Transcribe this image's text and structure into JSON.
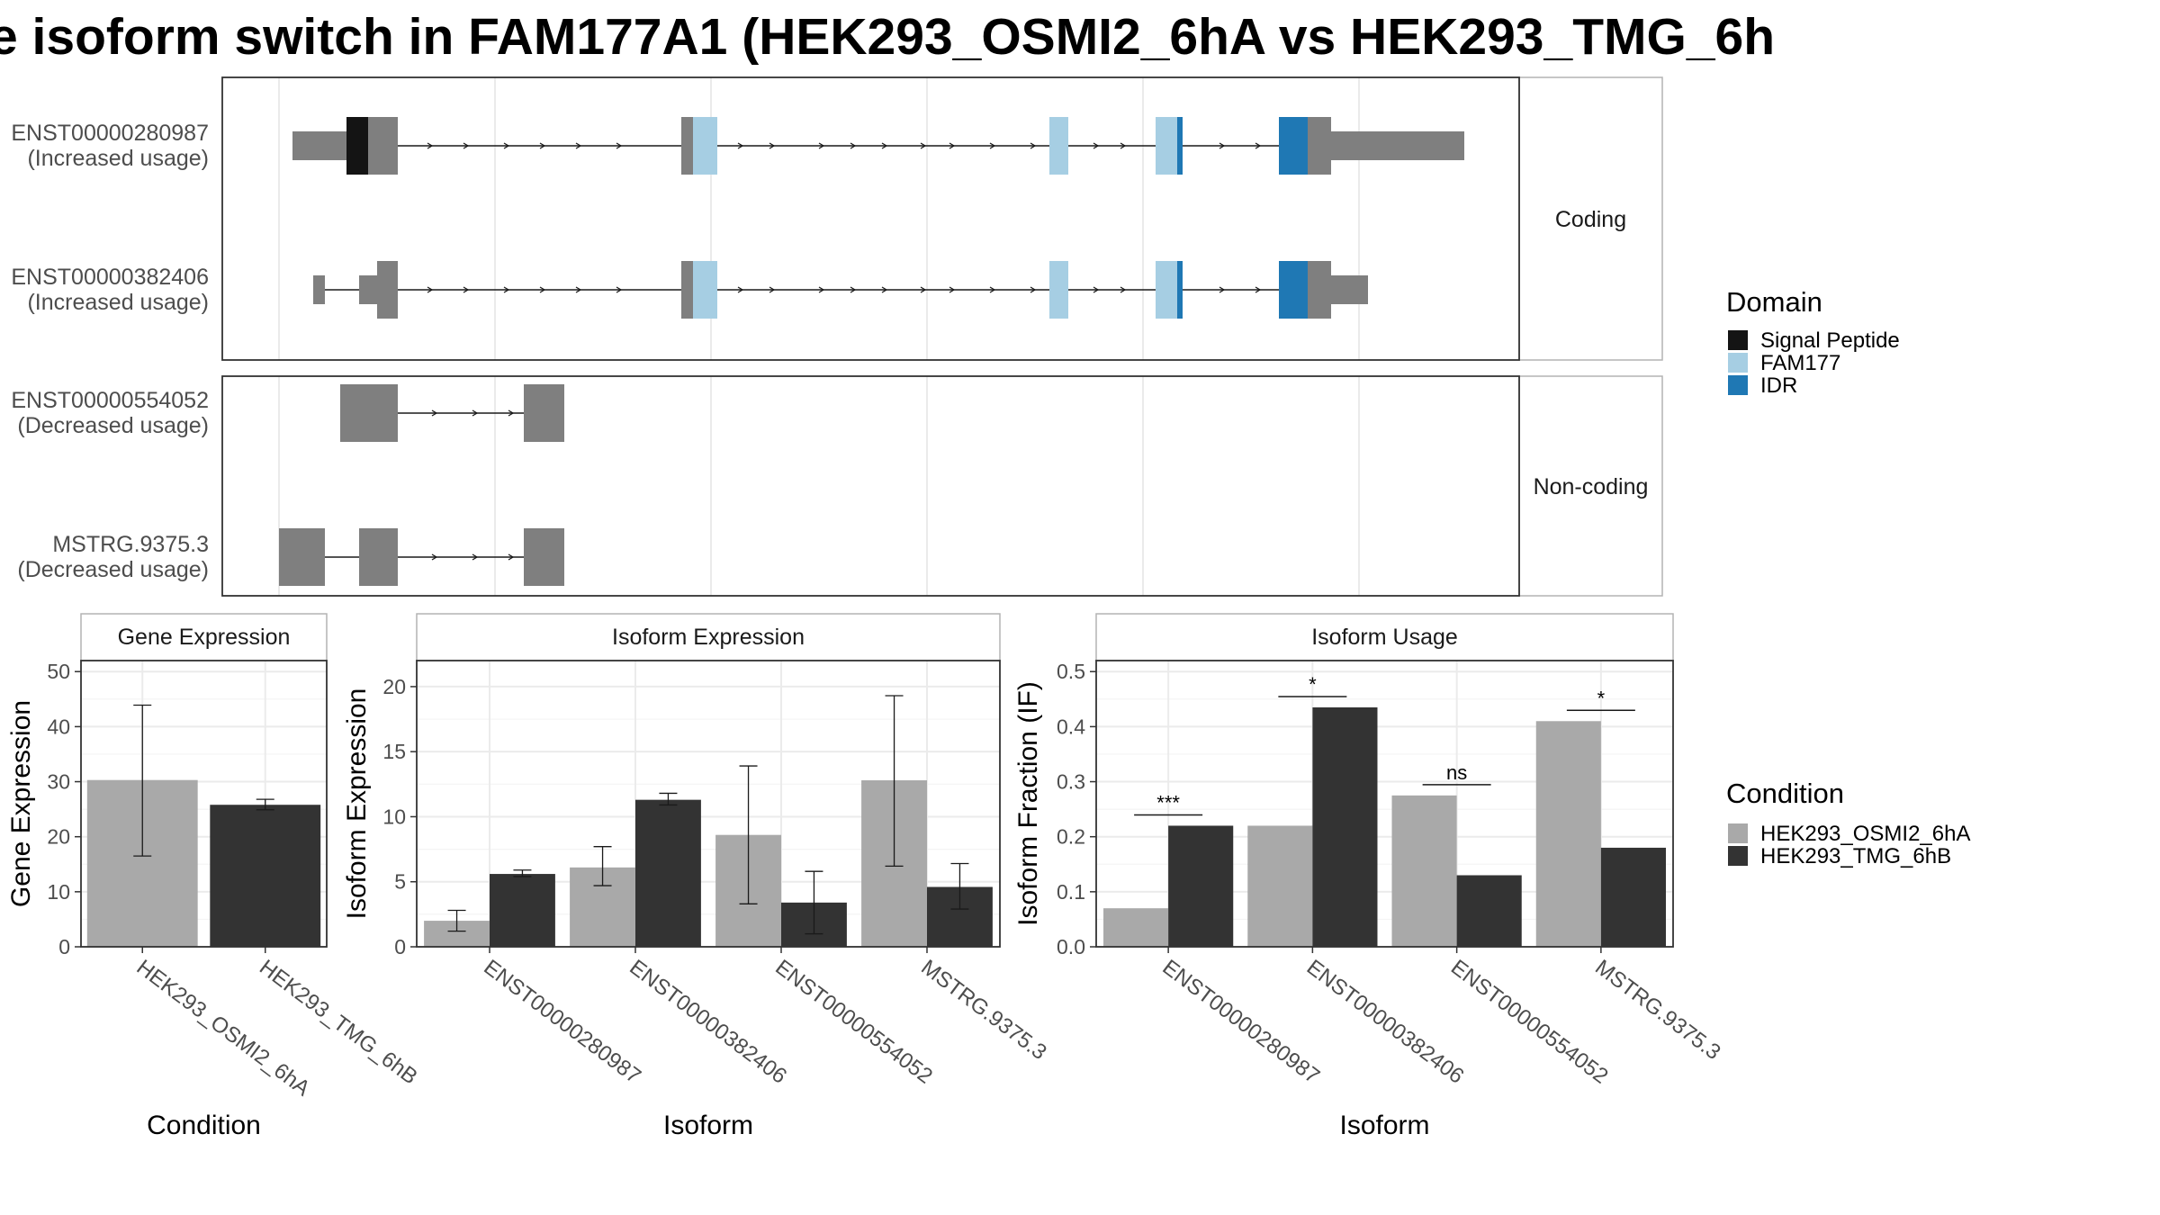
{
  "title": "e isoform switch in FAM177A1 (HEK293_OSMI2_6hA vs HEK293_TMG_6h",
  "colors": {
    "signal_peptide": "#141414",
    "fam177": "#a6cee3",
    "idr": "#1f78b4",
    "exon": "#7f7f7f",
    "cond_a": "#a9a9a9",
    "cond_b": "#333333"
  },
  "structure": {
    "facets": [
      "Coding",
      "Non-coding"
    ],
    "transcripts": [
      {
        "id": "ENST00000280987",
        "note": "(Increased usage)",
        "facet": 0
      },
      {
        "id": "ENST00000382406",
        "note": "(Increased usage)",
        "facet": 0
      },
      {
        "id": "ENST00000554052",
        "note": "(Decreased usage)",
        "facet": 1
      },
      {
        "id": "MSTRG.9375.3",
        "note": "(Decreased usage)",
        "facet": 1
      }
    ]
  },
  "legend_domain": {
    "title": "Domain",
    "items": [
      {
        "label": "Signal Peptide",
        "color": "#141414"
      },
      {
        "label": "FAM177",
        "color": "#a6cee3"
      },
      {
        "label": "IDR",
        "color": "#1f78b4"
      }
    ]
  },
  "legend_condition": {
    "title": "Condition",
    "items": [
      {
        "label": "HEK293_OSMI2_6hA",
        "color": "#a9a9a9"
      },
      {
        "label": "HEK293_TMG_6hB",
        "color": "#333333"
      }
    ]
  },
  "chart_data": [
    {
      "type": "bar",
      "title": "Gene Expression",
      "xlabel": "Condition",
      "ylabel": "Gene Expression",
      "categories": [
        "HEK293_OSMI2_6hA",
        "HEK293_TMG_6hB"
      ],
      "values": [
        30.3,
        25.8
      ],
      "errors": [
        [
          16.5,
          43.9
        ],
        [
          24.9,
          26.8
        ]
      ],
      "ylim": [
        0,
        52
      ],
      "yticks": [
        0,
        10,
        20,
        30,
        40,
        50
      ]
    },
    {
      "type": "bar",
      "title": "Isoform Expression",
      "xlabel": "Isoform",
      "ylabel": "Isoform Expression",
      "categories": [
        "ENST00000280987",
        "ENST00000382406",
        "ENST00000554052",
        "MSTRG.9375.3"
      ],
      "series": [
        {
          "name": "HEK293_OSMI2_6hA",
          "values": [
            2.0,
            6.1,
            8.6,
            12.8
          ],
          "errors": [
            [
              1.2,
              2.8
            ],
            [
              4.7,
              7.7
            ],
            [
              3.3,
              13.9
            ],
            [
              6.2,
              19.3
            ]
          ]
        },
        {
          "name": "HEK293_TMG_6hB",
          "values": [
            5.6,
            11.3,
            3.4,
            4.6
          ],
          "errors": [
            [
              5.4,
              5.9
            ],
            [
              10.9,
              11.8
            ],
            [
              1.0,
              5.8
            ],
            [
              2.9,
              6.4
            ]
          ]
        }
      ],
      "ylim": [
        0,
        22
      ],
      "yticks": [
        0,
        5,
        10,
        15,
        20
      ]
    },
    {
      "type": "bar",
      "title": "Isoform Usage",
      "xlabel": "Isoform",
      "ylabel": "Isoform Fraction (IF)",
      "categories": [
        "ENST00000280987",
        "ENST00000382406",
        "ENST00000554052",
        "MSTRG.9375.3"
      ],
      "series": [
        {
          "name": "HEK293_OSMI2_6hA",
          "values": [
            0.07,
            0.22,
            0.275,
            0.41
          ]
        },
        {
          "name": "HEK293_TMG_6hB",
          "values": [
            0.22,
            0.435,
            0.13,
            0.18
          ]
        }
      ],
      "significance": [
        "***",
        "*",
        "ns",
        "*"
      ],
      "ylim": [
        0,
        0.52
      ],
      "yticks": [
        0.0,
        0.1,
        0.2,
        0.3,
        0.4,
        0.5
      ]
    }
  ]
}
